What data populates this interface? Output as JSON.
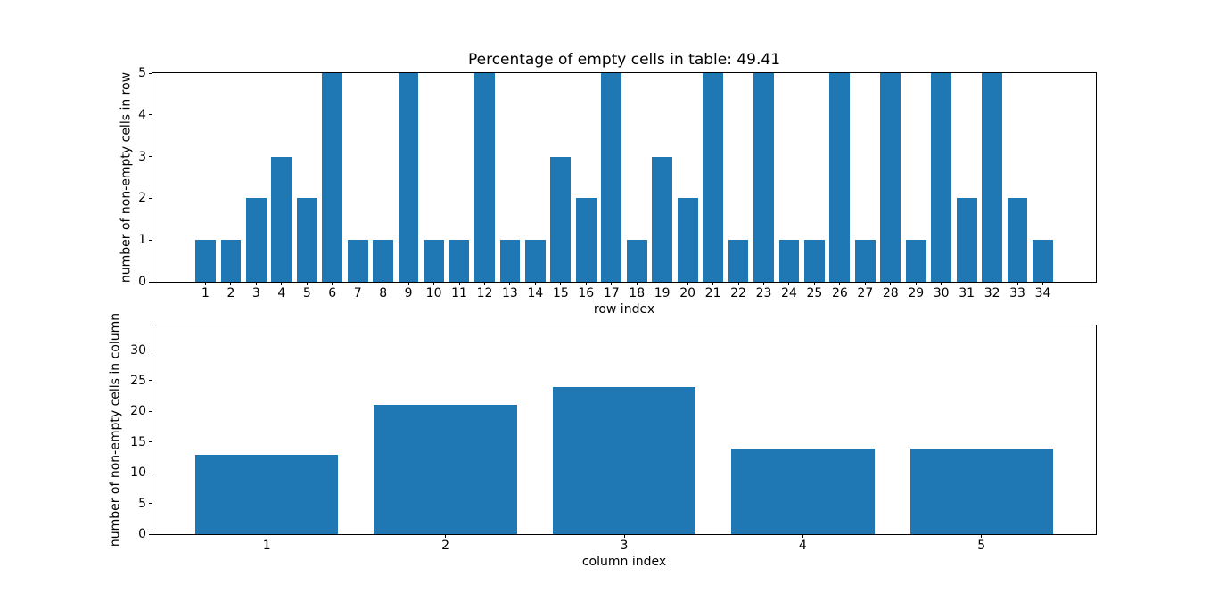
{
  "figure": {
    "background_color": "#ffffff",
    "text_color": "#000000",
    "bar_color": "#1f77b4"
  },
  "chart_data": [
    {
      "type": "bar",
      "title": "Percentage of empty cells in table: 49.41",
      "xlabel": "row index",
      "ylabel": "number of non-empty cells in row",
      "categories": [
        1,
        2,
        3,
        4,
        5,
        6,
        7,
        8,
        9,
        10,
        11,
        12,
        13,
        14,
        15,
        16,
        17,
        18,
        19,
        20,
        21,
        22,
        23,
        24,
        25,
        26,
        27,
        28,
        29,
        30,
        31,
        32,
        33,
        34
      ],
      "values": [
        1,
        1,
        2,
        3,
        2,
        5,
        1,
        1,
        5,
        1,
        1,
        5,
        1,
        1,
        3,
        2,
        5,
        1,
        3,
        2,
        5,
        1,
        5,
        1,
        1,
        5,
        1,
        5,
        1,
        5,
        2,
        5,
        2,
        1
      ],
      "bar_color": "#1f77b4",
      "bar_width": 0.8,
      "xlim": [
        -1.09,
        36.09
      ],
      "ylim": [
        0,
        5
      ],
      "yticks": [
        0,
        1,
        2,
        3,
        4,
        5
      ],
      "grid": false,
      "legend": null
    },
    {
      "type": "bar",
      "title": "",
      "xlabel": "column index",
      "ylabel": "number of non-empty cells in column",
      "categories": [
        1,
        2,
        3,
        4,
        5
      ],
      "values": [
        13,
        21,
        24,
        14,
        14
      ],
      "bar_color": "#1f77b4",
      "bar_width": 0.8,
      "xlim": [
        0.36,
        5.64
      ],
      "ylim": [
        0,
        34
      ],
      "yticks": [
        0,
        5,
        10,
        15,
        20,
        25,
        30
      ],
      "grid": false,
      "legend": null
    }
  ]
}
